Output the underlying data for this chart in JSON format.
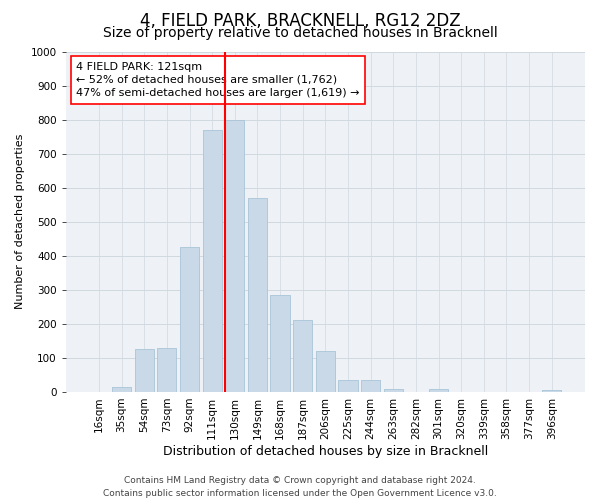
{
  "title": "4, FIELD PARK, BRACKNELL, RG12 2DZ",
  "subtitle": "Size of property relative to detached houses in Bracknell",
  "xlabel": "Distribution of detached houses by size in Bracknell",
  "ylabel": "Number of detached properties",
  "categories": [
    "16sqm",
    "35sqm",
    "54sqm",
    "73sqm",
    "92sqm",
    "111sqm",
    "130sqm",
    "149sqm",
    "168sqm",
    "187sqm",
    "206sqm",
    "225sqm",
    "244sqm",
    "263sqm",
    "282sqm",
    "301sqm",
    "320sqm",
    "339sqm",
    "358sqm",
    "377sqm",
    "396sqm"
  ],
  "values": [
    0,
    15,
    125,
    130,
    425,
    770,
    800,
    570,
    285,
    210,
    120,
    35,
    35,
    10,
    0,
    8,
    0,
    0,
    0,
    0,
    5
  ],
  "bar_color": "#c9d9e8",
  "bar_edge_color": "#a8c4d8",
  "vline_color": "red",
  "annotation_text": "4 FIELD PARK: 121sqm\n← 52% of detached houses are smaller (1,762)\n47% of semi-detached houses are larger (1,619) →",
  "annotation_box_color": "white",
  "annotation_box_edge": "red",
  "ylim": [
    0,
    1000
  ],
  "yticks": [
    0,
    100,
    200,
    300,
    400,
    500,
    600,
    700,
    800,
    900,
    1000
  ],
  "grid_color": "#d0d8e0",
  "bg_color": "#eef2f7",
  "footer": "Contains HM Land Registry data © Crown copyright and database right 2024.\nContains public sector information licensed under the Open Government Licence v3.0.",
  "title_fontsize": 12,
  "subtitle_fontsize": 10,
  "xlabel_fontsize": 9,
  "ylabel_fontsize": 8,
  "tick_fontsize": 7.5,
  "annotation_fontsize": 8,
  "footer_fontsize": 6.5
}
